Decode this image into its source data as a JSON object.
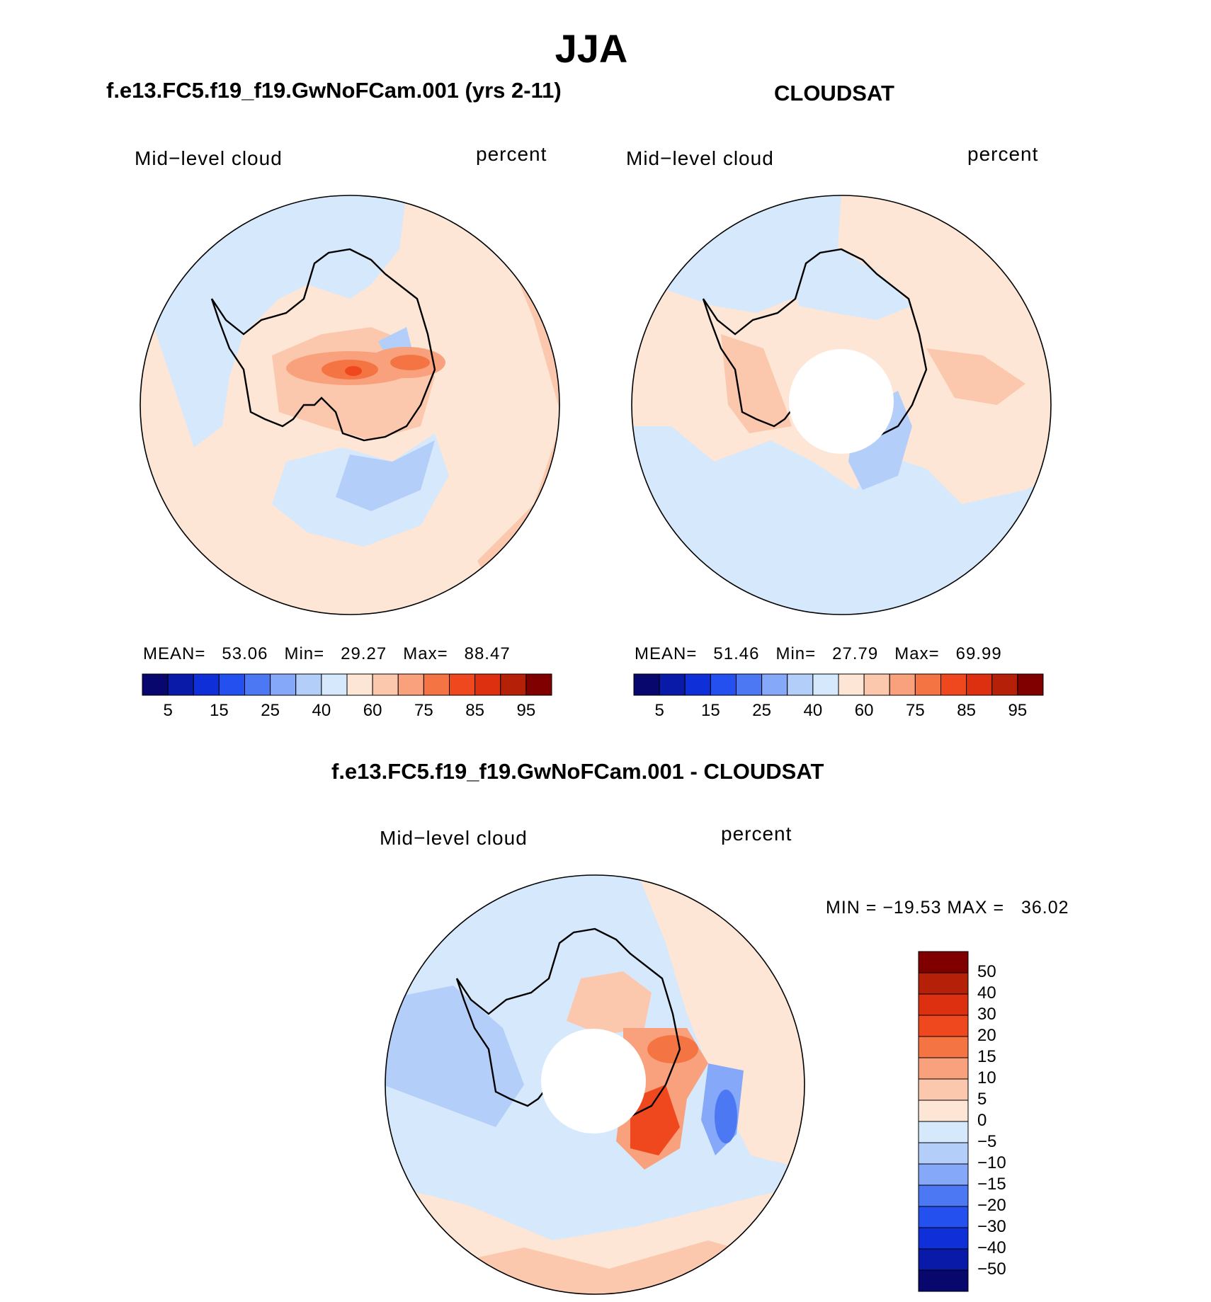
{
  "title": "JJA",
  "panels": [
    {
      "title": "f.e13.FC5.f19_f19.GwNoFCam.001 (yrs 2-11)",
      "variable": "Mid−level cloud",
      "units": "percent",
      "mean_label": "MEAN=",
      "mean": "53.06",
      "min_label": "Min=",
      "min": "29.27",
      "max_label": "Max=",
      "max": "88.47",
      "has_pole_hole": false
    },
    {
      "title": "CLOUDSAT",
      "variable": "Mid−level cloud",
      "units": "percent",
      "mean_label": "MEAN=",
      "mean": "51.46",
      "min_label": "Min=",
      "min": "27.79",
      "max_label": "Max=",
      "max": "69.99",
      "has_pole_hole": true
    },
    {
      "title": "f.e13.FC5.f19_f19.GwNoFCam.001 - CLOUDSAT",
      "variable": "Mid−level cloud",
      "units": "percent",
      "minmax_text": "MIN = −19.53 MAX =   36.02",
      "has_pole_hole": true
    }
  ],
  "colorbar_abs": {
    "ticks": [
      "5",
      "15",
      "25",
      "40",
      "60",
      "75",
      "85",
      "95"
    ],
    "colors": [
      "#08076e",
      "#0a1aa8",
      "#0f2fd8",
      "#2450f0",
      "#4c78f4",
      "#86a8f8",
      "#b4cefa",
      "#d6e8fc",
      "#fde6d6",
      "#fbc8ae",
      "#f9a07c",
      "#f57444",
      "#f0481e",
      "#dc3010",
      "#b42008",
      "#800000"
    ]
  },
  "colorbar_diff": {
    "ticks": [
      "50",
      "40",
      "30",
      "20",
      "15",
      "10",
      "5",
      "0",
      "−5",
      "−10",
      "−15",
      "−20",
      "−30",
      "−40",
      "−50"
    ],
    "colors": [
      "#800000",
      "#b42008",
      "#dc3010",
      "#f0481e",
      "#f57444",
      "#f9a07c",
      "#fbc8ae",
      "#fde6d6",
      "#d6e8fc",
      "#b4cefa",
      "#86a8f8",
      "#4c78f4",
      "#2450f0",
      "#0f2fd8",
      "#0a1aa8",
      "#08076e"
    ]
  }
}
